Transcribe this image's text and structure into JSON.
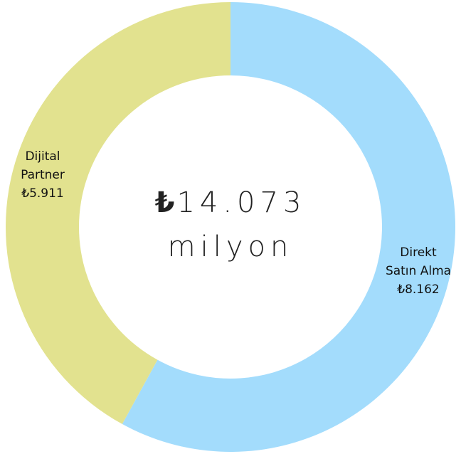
{
  "chart_data": {
    "type": "donut",
    "categories": [
      "Direkt Satın Alma",
      "Dijital Partner"
    ],
    "values": [
      8162,
      5911
    ],
    "value_labels": [
      "₺8.162",
      "₺5.911"
    ],
    "colors": [
      "#a3dcfc",
      "#e2e28f"
    ],
    "center_symbol": "₺",
    "center_value": "14.073",
    "center_unit": "milyon"
  }
}
